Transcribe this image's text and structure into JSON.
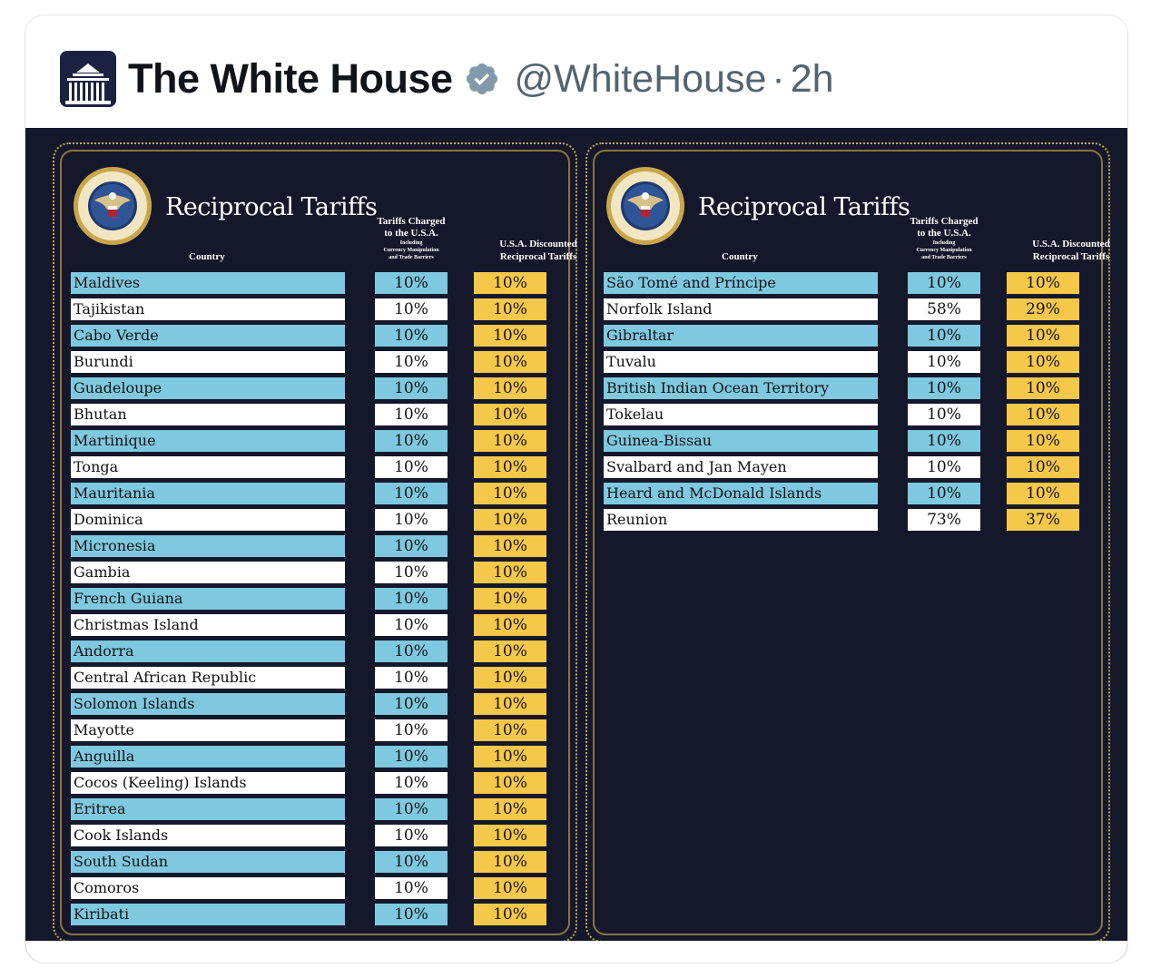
{
  "tweet": {
    "display_name": "The White House",
    "handle": "@WhiteHouse",
    "separator": "·",
    "time": "2h",
    "verified_color": "#829aab"
  },
  "panels": [
    {
      "title": "Reciprocal Tariffs",
      "headers": {
        "country": "Country",
        "charged_line1": "Tariffs Charged",
        "charged_line2": "to the U.S.A.",
        "charged_line3": "Including",
        "charged_line4": "Currency Manipulation",
        "charged_line5": "and Trade Barriers",
        "discount_line1": "U.S.A. Discounted",
        "discount_line2": "Reciprocal Tariffs"
      },
      "rows": [
        {
          "country": "Maldives",
          "charged": "10%",
          "discounted": "10%"
        },
        {
          "country": "Tajikistan",
          "charged": "10%",
          "discounted": "10%"
        },
        {
          "country": "Cabo Verde",
          "charged": "10%",
          "discounted": "10%"
        },
        {
          "country": "Burundi",
          "charged": "10%",
          "discounted": "10%"
        },
        {
          "country": "Guadeloupe",
          "charged": "10%",
          "discounted": "10%"
        },
        {
          "country": "Bhutan",
          "charged": "10%",
          "discounted": "10%"
        },
        {
          "country": "Martinique",
          "charged": "10%",
          "discounted": "10%"
        },
        {
          "country": "Tonga",
          "charged": "10%",
          "discounted": "10%"
        },
        {
          "country": "Mauritania",
          "charged": "10%",
          "discounted": "10%"
        },
        {
          "country": "Dominica",
          "charged": "10%",
          "discounted": "10%"
        },
        {
          "country": "Micronesia",
          "charged": "10%",
          "discounted": "10%"
        },
        {
          "country": "Gambia",
          "charged": "10%",
          "discounted": "10%"
        },
        {
          "country": "French Guiana",
          "charged": "10%",
          "discounted": "10%"
        },
        {
          "country": "Christmas Island",
          "charged": "10%",
          "discounted": "10%"
        },
        {
          "country": "Andorra",
          "charged": "10%",
          "discounted": "10%"
        },
        {
          "country": "Central African Republic",
          "charged": "10%",
          "discounted": "10%"
        },
        {
          "country": "Solomon Islands",
          "charged": "10%",
          "discounted": "10%"
        },
        {
          "country": "Mayotte",
          "charged": "10%",
          "discounted": "10%"
        },
        {
          "country": "Anguilla",
          "charged": "10%",
          "discounted": "10%"
        },
        {
          "country": "Cocos (Keeling) Islands",
          "charged": "10%",
          "discounted": "10%"
        },
        {
          "country": "Eritrea",
          "charged": "10%",
          "discounted": "10%"
        },
        {
          "country": "Cook Islands",
          "charged": "10%",
          "discounted": "10%"
        },
        {
          "country": "South Sudan",
          "charged": "10%",
          "discounted": "10%"
        },
        {
          "country": "Comoros",
          "charged": "10%",
          "discounted": "10%"
        },
        {
          "country": "Kiribati",
          "charged": "10%",
          "discounted": "10%"
        }
      ]
    },
    {
      "title": "Reciprocal Tariffs",
      "headers": {
        "country": "Country",
        "charged_line1": "Tariffs Charged",
        "charged_line2": "to the U.S.A.",
        "charged_line3": "Including",
        "charged_line4": "Currency Manipulation",
        "charged_line5": "and Trade Barriers",
        "discount_line1": "U.S.A. Discounted",
        "discount_line2": "Reciprocal Tariffs"
      },
      "rows": [
        {
          "country": "São Tomé and Príncipe",
          "charged": "10%",
          "discounted": "10%"
        },
        {
          "country": "Norfolk Island",
          "charged": "58%",
          "discounted": "29%"
        },
        {
          "country": "Gibraltar",
          "charged": "10%",
          "discounted": "10%"
        },
        {
          "country": "Tuvalu",
          "charged": "10%",
          "discounted": "10%"
        },
        {
          "country": "British Indian Ocean Territory",
          "charged": "10%",
          "discounted": "10%"
        },
        {
          "country": "Tokelau",
          "charged": "10%",
          "discounted": "10%"
        },
        {
          "country": "Guinea-Bissau",
          "charged": "10%",
          "discounted": "10%"
        },
        {
          "country": "Svalbard and Jan Mayen",
          "charged": "10%",
          "discounted": "10%"
        },
        {
          "country": "Heard and McDonald Islands",
          "charged": "10%",
          "discounted": "10%"
        },
        {
          "country": "Reunion",
          "charged": "73%",
          "discounted": "37%"
        }
      ]
    }
  ],
  "colors": {
    "background": "#15182b",
    "row_blue": "#7ec9e0",
    "row_white": "#ffffff",
    "discount_gold": "#f6c84a",
    "border_gold": "#c8a84a"
  }
}
